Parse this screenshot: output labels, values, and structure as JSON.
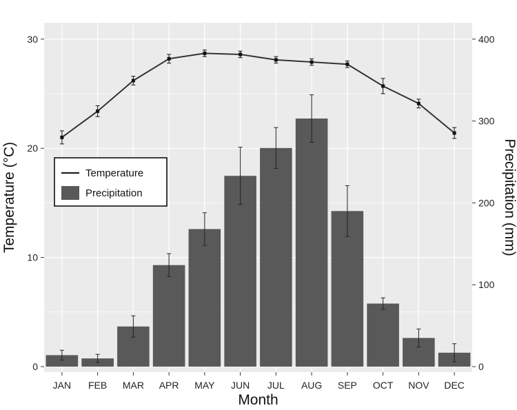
{
  "chart_data": {
    "type": "bar+line",
    "categories": [
      "JAN",
      "FEB",
      "MAR",
      "APR",
      "MAY",
      "JUN",
      "JUL",
      "AUG",
      "SEP",
      "OCT",
      "NOV",
      "DEC"
    ],
    "xlabel": "Month",
    "y_left": {
      "label": "Temperature (°C)",
      "ticks": [
        0,
        10,
        20,
        30
      ],
      "range": [
        -0.5,
        31.5
      ]
    },
    "y_right": {
      "label": "Precipitation (mm)",
      "ticks": [
        0,
        100,
        200,
        300,
        400
      ],
      "range": [
        -6.7,
        420
      ]
    },
    "series": [
      {
        "name": "Temperature",
        "kind": "line",
        "axis": "left",
        "values": [
          21.0,
          23.4,
          26.2,
          28.2,
          28.7,
          28.6,
          28.1,
          27.9,
          27.7,
          25.7,
          24.1,
          21.4
        ],
        "error": [
          0.6,
          0.5,
          0.4,
          0.4,
          0.3,
          0.3,
          0.3,
          0.3,
          0.3,
          0.7,
          0.4,
          0.5
        ]
      },
      {
        "name": "Precipitation",
        "kind": "bar",
        "axis": "right",
        "values": [
          14,
          10,
          49,
          124,
          168,
          233,
          267,
          303,
          190,
          77,
          35,
          17
        ],
        "error": [
          6,
          5,
          13,
          14,
          20,
          35,
          25,
          29,
          31,
          7,
          11,
          11
        ]
      }
    ],
    "legend_position": "left",
    "grid": true,
    "colors": {
      "panel": "#ebebeb",
      "grid": "#ffffff",
      "bar": "#595959",
      "line": "#333333"
    }
  }
}
